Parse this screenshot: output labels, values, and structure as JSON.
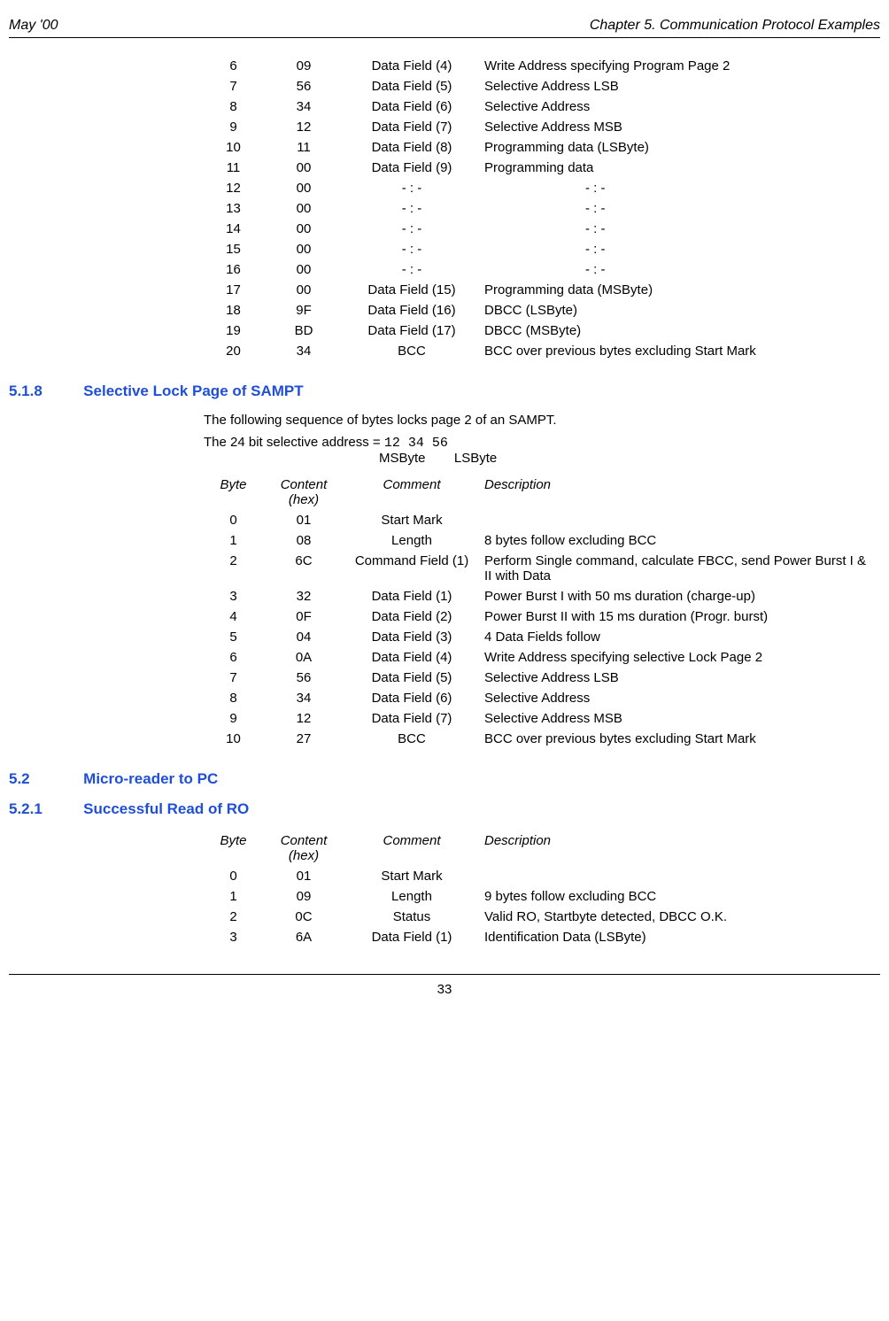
{
  "header": {
    "left": "May '00",
    "right": "Chapter 5. Communication Protocol Examples"
  },
  "table1": {
    "rows": [
      {
        "byte": "6",
        "hex": "09",
        "comment": "Data Field (4)",
        "desc": "Write Address specifying Program Page 2"
      },
      {
        "byte": "7",
        "hex": "56",
        "comment": "Data Field (5)",
        "desc": "Selective Address LSB"
      },
      {
        "byte": "8",
        "hex": "34",
        "comment": "Data Field (6)",
        "desc": "Selective Address"
      },
      {
        "byte": "9",
        "hex": "12",
        "comment": "Data Field (7)",
        "desc": "Selective Address MSB"
      },
      {
        "byte": "10",
        "hex": "11",
        "comment": "Data Field (8)",
        "desc": "Programming data (LSByte)"
      },
      {
        "byte": "11",
        "hex": "00",
        "comment": "Data Field (9)",
        "desc": "Programming data"
      },
      {
        "byte": "12",
        "hex": "00",
        "comment": "- : -",
        "desc": "- : -"
      },
      {
        "byte": "13",
        "hex": "00",
        "comment": "- : -",
        "desc": "- : -"
      },
      {
        "byte": "14",
        "hex": "00",
        "comment": "- : -",
        "desc": "- : -"
      },
      {
        "byte": "15",
        "hex": "00",
        "comment": "- : -",
        "desc": "- : -"
      },
      {
        "byte": "16",
        "hex": "00",
        "comment": "- : -",
        "desc": "- : -"
      },
      {
        "byte": "17",
        "hex": "00",
        "comment": "Data Field (15)",
        "desc": "Programming data (MSByte)"
      },
      {
        "byte": "18",
        "hex": "9F",
        "comment": "Data Field (16)",
        "desc": "DBCC (LSByte)"
      },
      {
        "byte": "19",
        "hex": "BD",
        "comment": "Data Field (17)",
        "desc": "DBCC (MSByte)"
      },
      {
        "byte": "20",
        "hex": "34",
        "comment": "BCC",
        "desc": "BCC over previous bytes excluding Start Mark"
      }
    ]
  },
  "sec518": {
    "num": "5.1.8",
    "title": "Selective Lock Page of SAMPT",
    "para1": "The following sequence of bytes locks page 2 of an SAMPT.",
    "addr_text": "The 24 bit selective address = ",
    "addr_hex": "12 34 56",
    "addr_sub_msb": "MSByte",
    "addr_sub_lsb": "LSByte",
    "head": {
      "byte": "Byte",
      "hex": "Content (hex)",
      "comment": "Comment",
      "desc": "Description"
    },
    "rows": [
      {
        "byte": "0",
        "hex": "01",
        "comment": "Start Mark",
        "desc": ""
      },
      {
        "byte": "1",
        "hex": "08",
        "comment": "Length",
        "desc": "8 bytes follow excluding BCC"
      },
      {
        "byte": "2",
        "hex": "6C",
        "comment": "Command Field (1)",
        "desc": "Perform Single command, calculate FBCC, send Power Burst I & II with Data"
      },
      {
        "byte": "3",
        "hex": "32",
        "comment": "Data Field (1)",
        "desc": "Power Burst I with 50 ms duration (charge-up)"
      },
      {
        "byte": "4",
        "hex": "0F",
        "comment": "Data Field (2)",
        "desc": "Power Burst II with 15 ms duration (Progr. burst)"
      },
      {
        "byte": "5",
        "hex": "04",
        "comment": "Data Field (3)",
        "desc": "4 Data Fields follow"
      },
      {
        "byte": "6",
        "hex": "0A",
        "comment": "Data Field (4)",
        "desc": "Write Address specifying selective Lock Page 2"
      },
      {
        "byte": "7",
        "hex": "56",
        "comment": "Data Field (5)",
        "desc": "Selective Address LSB"
      },
      {
        "byte": "8",
        "hex": "34",
        "comment": "Data Field (6)",
        "desc": "Selective Address"
      },
      {
        "byte": "9",
        "hex": "12",
        "comment": "Data Field (7)",
        "desc": "Selective Address MSB"
      },
      {
        "byte": "10",
        "hex": "27",
        "comment": "BCC",
        "desc": "BCC over previous bytes excluding Start Mark"
      }
    ]
  },
  "sec52": {
    "num": "5.2",
    "title": " Micro-reader to PC"
  },
  "sec521": {
    "num": "5.2.1",
    "title": "Successful Read of RO",
    "head": {
      "byte": "Byte",
      "hex": "Content (hex)",
      "comment": "Comment",
      "desc": "Description"
    },
    "rows": [
      {
        "byte": "0",
        "hex": "01",
        "comment": "Start Mark",
        "desc": ""
      },
      {
        "byte": "1",
        "hex": "09",
        "comment": "Length",
        "desc": "9 bytes follow excluding BCC"
      },
      {
        "byte": "2",
        "hex": "0C",
        "comment": "Status",
        "desc": "Valid RO, Startbyte detected, DBCC O.K."
      },
      {
        "byte": "3",
        "hex": "6A",
        "comment": "Data Field (1)",
        "desc": "Identification Data (LSByte)"
      }
    ]
  },
  "footer": {
    "page": "33"
  }
}
